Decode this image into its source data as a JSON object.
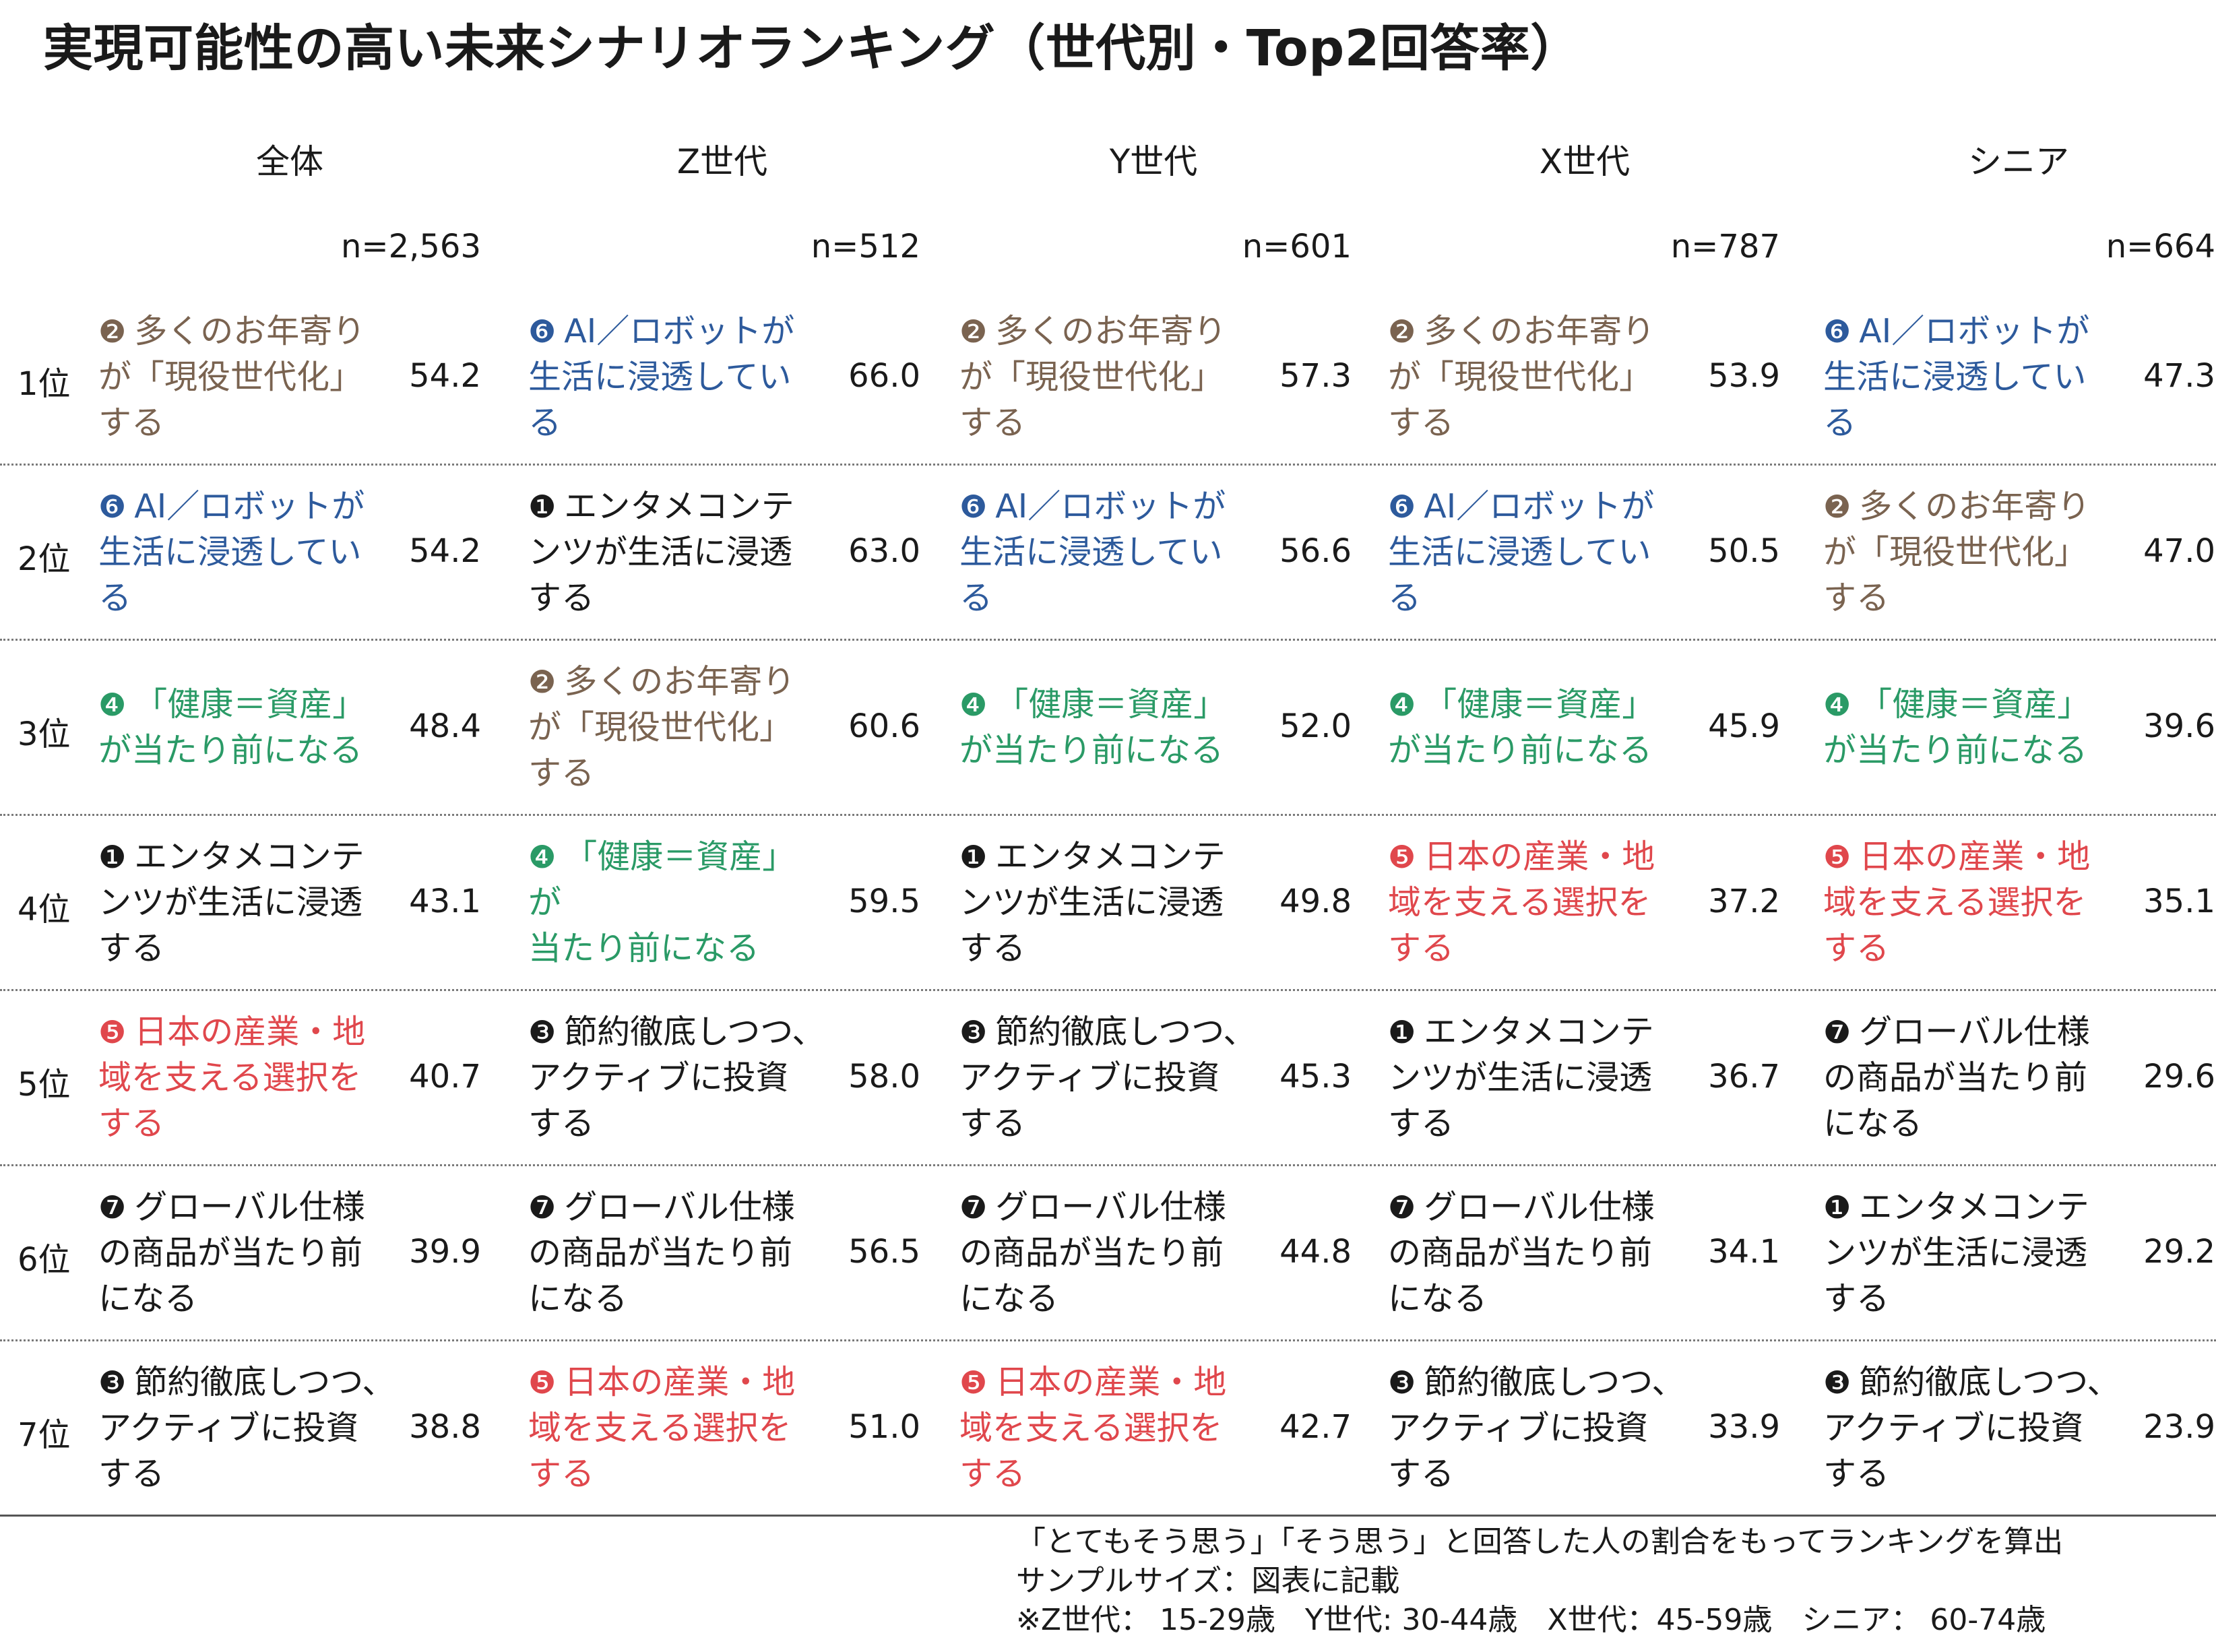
{
  "title": "実現可能性の高い未来シナリオランキング（世代別・Top2回答率）",
  "colors": {
    "1": "#1a1a1a",
    "2": "#7a6350",
    "3": "#1a1a1a",
    "4": "#2a9a66",
    "5": "#e0474c",
    "6": "#2d5a9c",
    "7": "#1a1a1a"
  },
  "scenarios": {
    "1": {
      "num": "❶",
      "lines": [
        "エンタメコンテ",
        "ンツが生活に浸透",
        "する"
      ]
    },
    "2": {
      "num": "❷",
      "lines": [
        "多くのお年寄り",
        "が「現役世代化」",
        "する"
      ]
    },
    "3": {
      "num": "❸",
      "lines": [
        "節約徹底しつつ、",
        "アクティブに投資",
        "する"
      ]
    },
    "4": {
      "num": "❹",
      "lines": [
        "「健康＝資産」",
        "が当たり前になる"
      ]
    },
    "5": {
      "num": "❺",
      "lines": [
        "日本の産業・地",
        "域を支える選択を",
        "する"
      ]
    },
    "6": {
      "num": "❻",
      "lines": [
        "AI／ロボットが",
        "生活に浸透してい",
        "る"
      ]
    },
    "7": {
      "num": "❼",
      "lines": [
        "グローバル仕様",
        "の商品が当たり前",
        "になる"
      ]
    }
  },
  "ranks": [
    "1位",
    "2位",
    "3位",
    "4位",
    "5位",
    "6位",
    "7位"
  ],
  "chart_data": {
    "type": "table",
    "title": "実現可能性の高い未来シナリオランキング（世代別・Top2回答率）",
    "columns": [
      {
        "name": "全体",
        "n": "n=2,563",
        "items": [
          {
            "id": "2",
            "value": "54.2"
          },
          {
            "id": "6",
            "value": "54.2"
          },
          {
            "id": "4",
            "value": "48.4"
          },
          {
            "id": "1",
            "value": "43.1"
          },
          {
            "id": "5",
            "value": "40.7"
          },
          {
            "id": "7",
            "value": "39.9"
          },
          {
            "id": "3",
            "value": "38.8"
          }
        ]
      },
      {
        "name": "Z世代",
        "n": "n=512",
        "items": [
          {
            "id": "6",
            "value": "66.0"
          },
          {
            "id": "1",
            "value": "63.0"
          },
          {
            "id": "2",
            "value": "60.6"
          },
          {
            "id": "4",
            "value": "59.5",
            "lines": [
              "「健康＝資産」",
              "が",
              "当たり前になる"
            ]
          },
          {
            "id": "3",
            "value": "58.0"
          },
          {
            "id": "7",
            "value": "56.5"
          },
          {
            "id": "5",
            "value": "51.0"
          }
        ]
      },
      {
        "name": "Y世代",
        "n": "n=601",
        "items": [
          {
            "id": "2",
            "value": "57.3"
          },
          {
            "id": "6",
            "value": "56.6"
          },
          {
            "id": "4",
            "value": "52.0"
          },
          {
            "id": "1",
            "value": "49.8"
          },
          {
            "id": "3",
            "value": "45.3"
          },
          {
            "id": "7",
            "value": "44.8"
          },
          {
            "id": "5",
            "value": "42.7"
          }
        ]
      },
      {
        "name": "X世代",
        "n": "n=787",
        "items": [
          {
            "id": "2",
            "value": "53.9"
          },
          {
            "id": "6",
            "value": "50.5"
          },
          {
            "id": "4",
            "value": "45.9"
          },
          {
            "id": "5",
            "value": "37.2"
          },
          {
            "id": "1",
            "value": "36.7"
          },
          {
            "id": "7",
            "value": "34.1"
          },
          {
            "id": "3",
            "value": "33.9"
          }
        ]
      },
      {
        "name": "シニア",
        "n": "n=664",
        "items": [
          {
            "id": "6",
            "value": "47.3"
          },
          {
            "id": "2",
            "value": "47.0"
          },
          {
            "id": "4",
            "value": "39.6"
          },
          {
            "id": "5",
            "value": "35.1"
          },
          {
            "id": "7",
            "value": "29.6"
          },
          {
            "id": "1",
            "value": "29.2"
          },
          {
            "id": "3",
            "value": "23.9"
          }
        ]
      }
    ]
  },
  "footnotes": [
    "「とてもそう思う」「そう思う」と回答した人の割合をもってランキングを算出",
    "サンプルサイズ：図表に記載",
    "※Z世代： 15-29歳　Y世代: 30-44歳　X世代：45-59歳　シニア： 60-74歳"
  ]
}
